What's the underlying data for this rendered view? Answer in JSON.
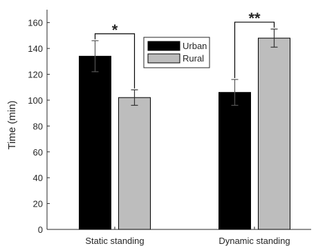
{
  "chart_data": {
    "type": "bar",
    "ylabel": "Time (min)",
    "xlabel": "",
    "ylim": [
      0,
      170
    ],
    "yticks": [
      0,
      20,
      40,
      60,
      80,
      100,
      120,
      140,
      160
    ],
    "categories": [
      "Static standing",
      "Dynamic standing"
    ],
    "series": [
      {
        "name": "Urban",
        "color": "#000000",
        "values": [
          134,
          106
        ],
        "errors": [
          12,
          10
        ]
      },
      {
        "name": "Rural",
        "color": "#bdbdbd",
        "values": [
          102,
          148
        ],
        "errors": [
          6,
          7
        ]
      }
    ],
    "significance": [
      {
        "category": "Static standing",
        "label": "*"
      },
      {
        "category": "Dynamic standing",
        "label": "**"
      }
    ],
    "legend_position": "top-center",
    "grid": false
  }
}
